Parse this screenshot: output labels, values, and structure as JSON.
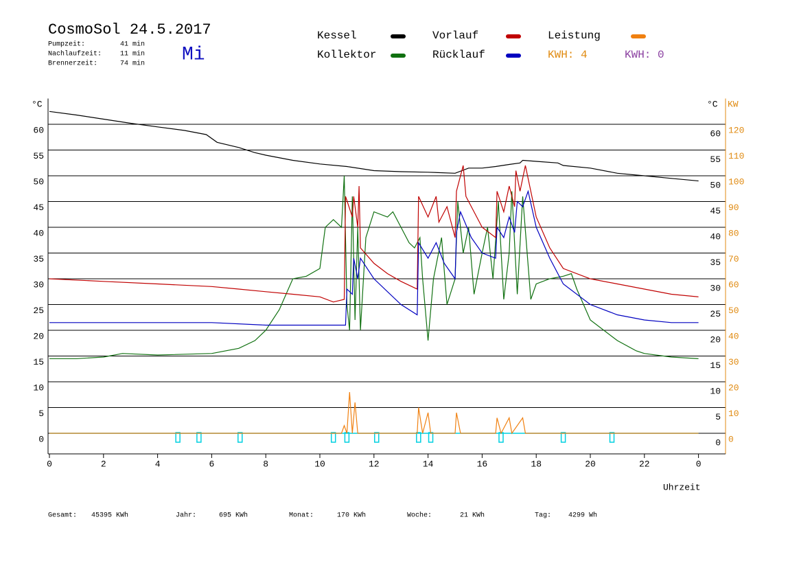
{
  "header": {
    "title": "CosmoSol 24.5.2017",
    "weekday": "Mi",
    "times": [
      [
        "Pumpzeit:",
        "41 min"
      ],
      [
        "Nachlaufzeit:",
        "11 min"
      ],
      [
        "Brennerzeit:",
        "74 min"
      ]
    ],
    "kwh": [
      {
        "label": "KWH: 4",
        "color": "#e08a10"
      },
      {
        "label": "KWH: 0",
        "color": "#8a3fa0"
      }
    ]
  },
  "footer": [
    [
      "Gesamt:",
      "45395 KWh"
    ],
    [
      "Jahr:",
      "695 KWh"
    ],
    [
      "Monat:",
      "170 KWh"
    ],
    [
      "Woche:",
      "21 KWh"
    ],
    [
      "Tag:",
      "4299 Wh"
    ]
  ],
  "chart_data": {
    "type": "line",
    "ylabel": "°C",
    "y2label_c": "°C",
    "y2label": "KW",
    "xlabel": "Uhrzeit",
    "xlim": [
      0,
      25
    ],
    "xticks": [
      0,
      2,
      4,
      6,
      8,
      10,
      12,
      14,
      16,
      18,
      20,
      22,
      {
        "value": 24,
        "label": "0"
      }
    ],
    "ylim": [
      -4,
      65
    ],
    "yticks": [
      0,
      5,
      10,
      15,
      20,
      25,
      30,
      35,
      40,
      45,
      50,
      55,
      60
    ],
    "y2lim": [
      -8,
      130
    ],
    "y2ticks": [
      0,
      10,
      20,
      30,
      40,
      50,
      60,
      70,
      80,
      90,
      100,
      110,
      120
    ],
    "grid": true,
    "series": [
      {
        "name": "Kessel",
        "color": "#000000",
        "x": [
          0,
          1,
          2,
          3,
          4,
          5,
          5.8,
          6.2,
          7,
          7.6,
          8,
          9,
          10,
          11,
          12,
          13,
          14,
          15,
          15.5,
          16,
          16.5,
          17,
          17.4,
          17.5,
          18,
          18.8,
          19,
          20,
          21,
          22,
          23,
          24
        ],
        "values": [
          62.5,
          61.8,
          61,
          60.2,
          59.5,
          58.8,
          58,
          56.5,
          55.5,
          54.5,
          54,
          53,
          52.3,
          51.8,
          51,
          50.8,
          50.7,
          50.5,
          51.5,
          51.5,
          51.8,
          52.2,
          52.5,
          53,
          52.8,
          52.5,
          52,
          51.5,
          50.5,
          50,
          49.5,
          49
        ]
      },
      {
        "name": "Kollektor",
        "color": "#107010",
        "x": [
          0,
          1,
          2,
          2.7,
          4,
          6,
          7,
          7.6,
          8,
          8.5,
          9,
          9.5,
          10,
          10.2,
          10.5,
          10.8,
          10.9,
          11,
          11.1,
          11.2,
          11.3,
          11.4,
          11.5,
          11.7,
          12,
          12.5,
          12.7,
          13,
          13.3,
          13.5,
          13.7,
          13.8,
          14,
          14.2,
          14.5,
          14.7,
          15,
          15.1,
          15.3,
          15.5,
          15.7,
          16,
          16.2,
          16.4,
          16.6,
          16.8,
          17,
          17.1,
          17.3,
          17.5,
          17.8,
          18,
          18.5,
          19,
          19.3,
          19.5,
          20,
          21,
          21.7,
          22,
          23,
          24
        ],
        "values": [
          14.5,
          14.5,
          14.8,
          15.5,
          15.2,
          15.5,
          16.5,
          18,
          20,
          24,
          30,
          30.5,
          32,
          40,
          41.5,
          40,
          50,
          25,
          20,
          46,
          22,
          40,
          20,
          38,
          43,
          42,
          43,
          40,
          37,
          36,
          38,
          30,
          18,
          30,
          38,
          25,
          30,
          45,
          35,
          40,
          27,
          35,
          40,
          30,
          45,
          26,
          35,
          47,
          27,
          46,
          26,
          29,
          30,
          30.5,
          31,
          28,
          22,
          18,
          16,
          15.5,
          14.8,
          14.5
        ]
      },
      {
        "name": "Vorlauf",
        "color": "#c00000",
        "x": [
          0,
          2,
          4,
          6,
          7,
          8,
          9,
          10,
          10.5,
          10.9,
          10.95,
          11.2,
          11.25,
          11.4,
          11.45,
          11.5,
          12,
          12.5,
          13,
          13.6,
          13.65,
          14,
          14.3,
          14.4,
          14.7,
          15,
          15.05,
          15.3,
          15.4,
          16,
          16.5,
          16.55,
          16.8,
          17,
          17.2,
          17.25,
          17.4,
          17.6,
          18,
          18.5,
          19,
          20,
          21,
          22,
          23,
          24
        ],
        "values": [
          30,
          29.5,
          29,
          28.5,
          28,
          27.5,
          27,
          26.5,
          25.5,
          26,
          46,
          42,
          46,
          40,
          48,
          36,
          33,
          31,
          29.5,
          28,
          46,
          42,
          46,
          41,
          44,
          38,
          47,
          52,
          46,
          40,
          38,
          47,
          43,
          48,
          44,
          51,
          47,
          52,
          42,
          36,
          32,
          30,
          29,
          28,
          27,
          26.5
        ]
      },
      {
        "name": "Rücklauf",
        "color": "#0000c0",
        "x": [
          0,
          6,
          8,
          10,
          10.95,
          11,
          11.2,
          11.25,
          11.4,
          11.5,
          12,
          13,
          13.6,
          13.65,
          14,
          14.3,
          14.6,
          15,
          15.05,
          15.2,
          15.6,
          16,
          16.5,
          16.55,
          16.8,
          17,
          17.2,
          17.3,
          17.5,
          17.7,
          18,
          18.5,
          19,
          20,
          21,
          22,
          23,
          24
        ],
        "values": [
          21.5,
          21.5,
          21,
          21,
          21,
          28,
          27,
          34,
          30,
          34,
          30,
          25,
          23,
          37,
          34,
          37,
          33,
          30,
          39,
          43,
          38,
          35,
          34,
          40,
          38,
          42,
          39,
          45,
          44,
          47,
          40,
          34,
          29,
          25,
          23,
          22,
          21.5,
          21.5
        ]
      },
      {
        "name": "Leistung",
        "color": "#f08010",
        "axis": "y2",
        "x": [
          0,
          10.8,
          10.9,
          11,
          11.1,
          11.2,
          11.3,
          11.4,
          13.6,
          13.65,
          13.8,
          14,
          14.1,
          15,
          15.05,
          15.2,
          16.5,
          16.55,
          16.7,
          17,
          17.1,
          17.5,
          17.6,
          24
        ],
        "values": [
          0,
          0,
          3,
          0,
          16,
          0,
          12,
          0,
          0,
          10,
          0,
          8,
          0,
          0,
          8,
          0,
          0,
          6,
          0,
          6,
          0,
          6,
          0,
          0
        ]
      }
    ],
    "markers": {
      "color": "#00d0e0",
      "x": [
        4.75,
        5.53,
        7.05,
        10.5,
        11.0,
        12.1,
        13.65,
        14.1,
        16.7,
        19.0,
        20.8
      ]
    }
  }
}
